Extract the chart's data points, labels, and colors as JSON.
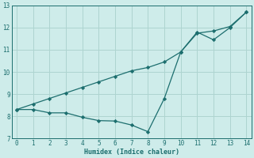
{
  "xlabel": "Humidex (Indice chaleur)",
  "x": [
    0,
    1,
    2,
    3,
    4,
    5,
    6,
    7,
    8,
    9,
    10,
    11,
    12,
    13,
    14
  ],
  "line1_wavy": [
    8.3,
    8.3,
    8.15,
    8.15,
    7.95,
    7.8,
    7.78,
    7.6,
    7.3,
    8.8,
    10.9,
    11.8,
    11.45,
    12.0,
    12.7
  ],
  "line2_straight": [
    8.3,
    8.55,
    8.8,
    9.05,
    9.3,
    9.55,
    9.8,
    10.05,
    10.2,
    10.45,
    10.9,
    11.75,
    11.85,
    12.05,
    12.7
  ],
  "line_color": "#1c6e6e",
  "bg_color": "#ceecea",
  "grid_color": "#aed4d0",
  "ylim": [
    7.0,
    13.0
  ],
  "xlim": [
    -0.3,
    14.3
  ],
  "yticks": [
    7,
    8,
    9,
    10,
    11,
    12,
    13
  ],
  "xticks": [
    0,
    1,
    2,
    3,
    4,
    5,
    6,
    7,
    8,
    9,
    10,
    11,
    12,
    13,
    14
  ]
}
